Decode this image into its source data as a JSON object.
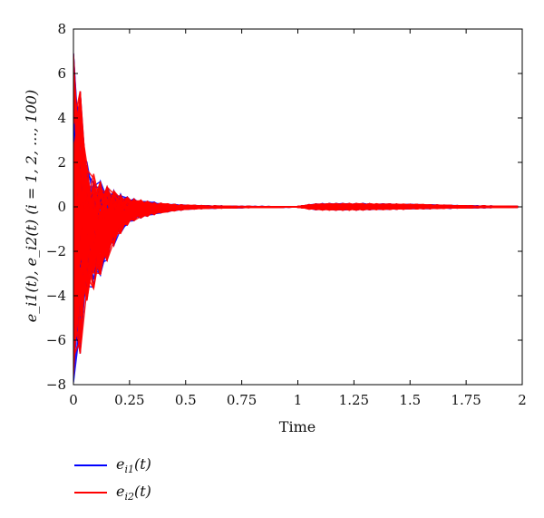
{
  "chart_data": {
    "type": "line",
    "title": "",
    "xlabel": "Time",
    "ylabel": "e_i1(t), e_i2(t) (i = 1, 2, ..., 100)",
    "xlim": [
      0,
      2
    ],
    "ylim": [
      -8,
      8
    ],
    "x_ticks": [
      0,
      0.25,
      0.5,
      0.75,
      1,
      1.25,
      1.5,
      1.75,
      2
    ],
    "x_tick_labels": [
      "0",
      "0.25",
      "0.5",
      "0.75",
      "1",
      "1.25",
      "1.5",
      "1.75",
      "2"
    ],
    "y_ticks": [
      -8,
      -6,
      -4,
      -2,
      0,
      2,
      4,
      6,
      8
    ],
    "y_tick_labels": [
      "−8",
      "−6",
      "−4",
      "−2",
      "0",
      "2",
      "4",
      "6",
      "8"
    ],
    "grid": false,
    "legend_position": "bottom-left",
    "series": [
      {
        "name": "e_i1(t)",
        "label_main": "e",
        "label_sub": "i1",
        "label_tail": "(t)",
        "color": "#0000ff",
        "description": "100 trajectories of e_i1(t)"
      },
      {
        "name": "e_i2(t)",
        "label_main": "e",
        "label_sub": "i2",
        "label_tail": "(t)",
        "color": "#ff0000",
        "description": "100 trajectories of e_i2(t)"
      }
    ],
    "envelope": {
      "time": [
        0,
        0.02,
        0.05,
        0.1,
        0.15,
        0.2,
        0.25,
        0.3,
        0.4,
        0.5,
        0.6,
        0.75,
        1.0,
        1.05,
        1.1,
        1.25,
        1.5,
        1.75,
        2.0
      ],
      "max": [
        6.9,
        6.7,
        2.2,
        1.3,
        0.9,
        0.6,
        0.4,
        0.3,
        0.15,
        0.08,
        0.05,
        0.02,
        0.01,
        0.1,
        0.15,
        0.15,
        0.12,
        0.05,
        0.02
      ],
      "min": [
        -7.9,
        -7.7,
        -4.4,
        -3.5,
        -2.4,
        -1.3,
        -0.7,
        -0.5,
        -0.25,
        -0.12,
        -0.07,
        -0.04,
        -0.01,
        -0.1,
        -0.15,
        -0.15,
        -0.1,
        -0.05,
        -0.02
      ]
    }
  }
}
